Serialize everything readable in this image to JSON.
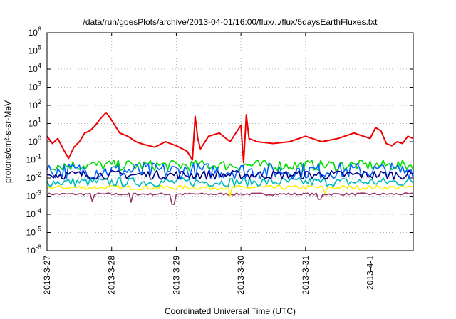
{
  "chart_data": {
    "type": "line",
    "title": "/data/run/goesPlots/archive/2013-04-01/16:00/flux/../flux/5daysEarthFluxes.txt",
    "xlabel": "Coordinated Universal Time (UTC)",
    "ylabel": "protons/cm²-s-sr-MeV",
    "yscale": "log",
    "ylim": [
      1e-06,
      1000000.0
    ],
    "yticks": [
      {
        "value": 1e-06,
        "base": "10",
        "exp": "-6"
      },
      {
        "value": 1e-05,
        "base": "10",
        "exp": "-5"
      },
      {
        "value": 0.0001,
        "base": "10",
        "exp": "-4"
      },
      {
        "value": 0.001,
        "base": "10",
        "exp": "-3"
      },
      {
        "value": 0.01,
        "base": "10",
        "exp": "-2"
      },
      {
        "value": 0.1,
        "base": "10",
        "exp": "-1"
      },
      {
        "value": 1,
        "base": "10",
        "exp": "0"
      },
      {
        "value": 10.0,
        "base": "10",
        "exp": "1"
      },
      {
        "value": 100.0,
        "base": "10",
        "exp": "2"
      },
      {
        "value": 1000.0,
        "base": "10",
        "exp": "3"
      },
      {
        "value": 10000.0,
        "base": "10",
        "exp": "4"
      },
      {
        "value": 100000.0,
        "base": "10",
        "exp": "5"
      },
      {
        "value": 1000000.0,
        "base": "10",
        "exp": "6"
      }
    ],
    "xlim": [
      "2013-03-27T00:00",
      "2013-04-01T16:00"
    ],
    "xticks": [
      "2013-3-27",
      "2013-3-28",
      "2013-3-29",
      "2013-3-30",
      "2013-3-31",
      "2013-4-1"
    ],
    "grid": true,
    "series": [
      {
        "color": "#ee0000",
        "kind": "red",
        "x": [
          "2013-03-27T00:00",
          "2013-03-27T02:00",
          "2013-03-27T04:00",
          "2013-03-27T06:00",
          "2013-03-27T08:00",
          "2013-03-27T10:00",
          "2013-03-27T12:00",
          "2013-03-27T14:00",
          "2013-03-27T16:00",
          "2013-03-27T18:00",
          "2013-03-27T20:00",
          "2013-03-27T22:00",
          "2013-03-28T00:00",
          "2013-03-28T03:00",
          "2013-03-28T06:00",
          "2013-03-28T09:00",
          "2013-03-28T12:00",
          "2013-03-28T16:00",
          "2013-03-28T20:00",
          "2013-03-29T00:00",
          "2013-03-29T04:00",
          "2013-03-29T06:00",
          "2013-03-29T07:00",
          "2013-03-29T08:00",
          "2013-03-29T09:00",
          "2013-03-29T12:00",
          "2013-03-29T16:00",
          "2013-03-29T20:00",
          "2013-03-30T00:00",
          "2013-03-30T01:00",
          "2013-03-30T02:00",
          "2013-03-30T03:00",
          "2013-03-30T06:00",
          "2013-03-30T12:00",
          "2013-03-30T18:00",
          "2013-03-31T00:00",
          "2013-03-31T06:00",
          "2013-03-31T12:00",
          "2013-03-31T18:00",
          "2013-04-01T00:00",
          "2013-04-01T02:00",
          "2013-04-01T04:00",
          "2013-04-01T06:00",
          "2013-04-01T08:00",
          "2013-04-01T10:00",
          "2013-04-01T12:00",
          "2013-04-01T14:00",
          "2013-04-01T16:00"
        ],
        "y": [
          2,
          0.8,
          1.5,
          0.4,
          0.12,
          0.5,
          1,
          3,
          4,
          8,
          20,
          40,
          15,
          3,
          2,
          1,
          0.7,
          0.5,
          1,
          0.6,
          0.3,
          0.1,
          25,
          1.5,
          0.4,
          2,
          3,
          1,
          8,
          0.07,
          30,
          1.5,
          1,
          0.8,
          1,
          2,
          1,
          1.5,
          3,
          1.5,
          6,
          4,
          0.8,
          0.6,
          1,
          0.8,
          2,
          1.5
        ]
      },
      {
        "color": "#00dd00",
        "kind": "green",
        "x": [
          "2013-03-27T00:00",
          "2013-04-01T16:00"
        ],
        "y": [
          0.05,
          0.05
        ]
      },
      {
        "color": "#0066ff",
        "kind": "blue",
        "x": [
          "2013-03-27T00:00",
          "2013-04-01T16:00"
        ],
        "y": [
          0.025,
          0.025
        ]
      },
      {
        "color": "#000088",
        "kind": "navy",
        "x": [
          "2013-03-27T00:00",
          "2013-04-01T16:00"
        ],
        "y": [
          0.015,
          0.015
        ]
      },
      {
        "color": "#00bbbb",
        "kind": "cyan",
        "x": [
          "2013-03-27T00:00",
          "2013-04-01T16:00"
        ],
        "y": [
          0.006,
          0.006
        ]
      },
      {
        "color": "#ffee00",
        "kind": "yellow",
        "x": [
          "2013-03-27T00:00",
          "2013-04-01T16:00"
        ],
        "y": [
          0.003,
          0.003
        ]
      },
      {
        "color": "#993366",
        "kind": "purple",
        "x": [
          "2013-03-27T00:00",
          "2013-04-01T16:00"
        ],
        "y": [
          0.0013,
          0.0013
        ]
      }
    ]
  }
}
